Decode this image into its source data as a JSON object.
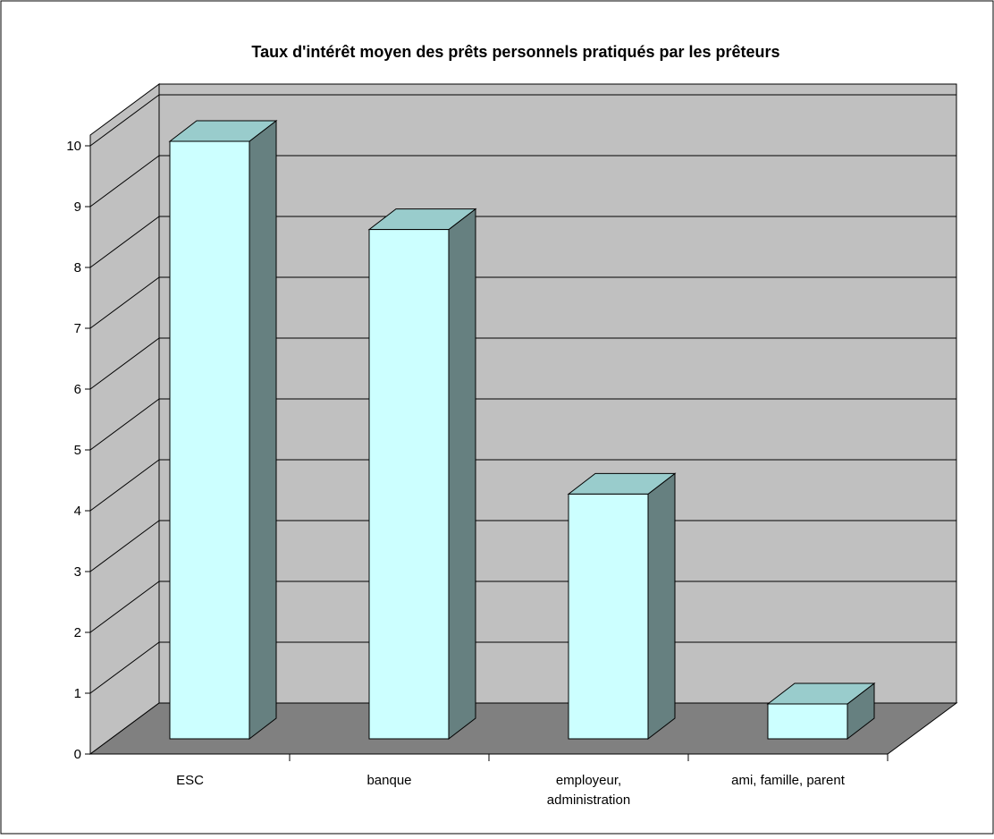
{
  "chart_data": {
    "type": "bar",
    "style": "3d-column",
    "title": "Taux d'intérêt moyen des prêts personnels pratiqués par les prêteurs",
    "categories": [
      [
        "ESC"
      ],
      [
        "banque"
      ],
      [
        "employeur,",
        "administration"
      ],
      [
        "ami, famille, parent"
      ]
    ],
    "values": [
      10,
      8.55,
      4.2,
      0.75
    ],
    "xlabel": "",
    "ylabel": "",
    "ylim": [
      0,
      10
    ],
    "yticks": [
      "0",
      "1",
      "2",
      "3",
      "4",
      "5",
      "6",
      "7",
      "8",
      "9",
      "10"
    ],
    "grid": true,
    "legend": "none",
    "colors": {
      "bar_front": "#ccffff",
      "bar_top": "#99cccc",
      "bar_side": "#668080",
      "back_wall": "#c0c0c0",
      "side_wall": "#c0c0c0",
      "floor": "#808080",
      "gridline": "#000000"
    }
  }
}
